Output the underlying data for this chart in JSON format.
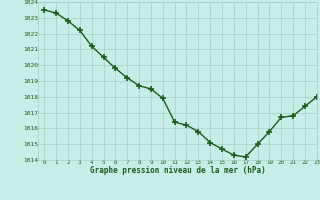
{
  "x": [
    0,
    1,
    2,
    3,
    4,
    5,
    6,
    7,
    8,
    9,
    10,
    11,
    12,
    13,
    14,
    15,
    16,
    17,
    18,
    19,
    20,
    21,
    22,
    23
  ],
  "y": [
    1023.5,
    1023.3,
    1022.8,
    1022.2,
    1021.2,
    1020.5,
    1019.8,
    1019.2,
    1018.7,
    1018.5,
    1017.9,
    1016.4,
    1016.2,
    1015.8,
    1015.1,
    1014.7,
    1014.3,
    1014.2,
    1015.0,
    1015.8,
    1016.7,
    1016.8,
    1017.4,
    1018.0
  ],
  "xlabel": "Graphe pression niveau de la mer (hPa)",
  "ylim": [
    1014,
    1024
  ],
  "xlim": [
    -0.5,
    23
  ],
  "yticks": [
    1014,
    1015,
    1016,
    1017,
    1018,
    1019,
    1020,
    1021,
    1022,
    1023,
    1024
  ],
  "xticks": [
    0,
    1,
    2,
    3,
    4,
    5,
    6,
    7,
    8,
    9,
    10,
    11,
    12,
    13,
    14,
    15,
    16,
    17,
    18,
    19,
    20,
    21,
    22,
    23
  ],
  "line_color": "#1a5c1a",
  "marker_color": "#1a5c1a",
  "bg_color": "#c8ede8",
  "grid_color": "#a8cec8",
  "xlabel_color": "#1a5c1a",
  "tick_color": "#1a5c1a",
  "line_width": 1.0,
  "marker_size": 4,
  "marker_style": "+"
}
